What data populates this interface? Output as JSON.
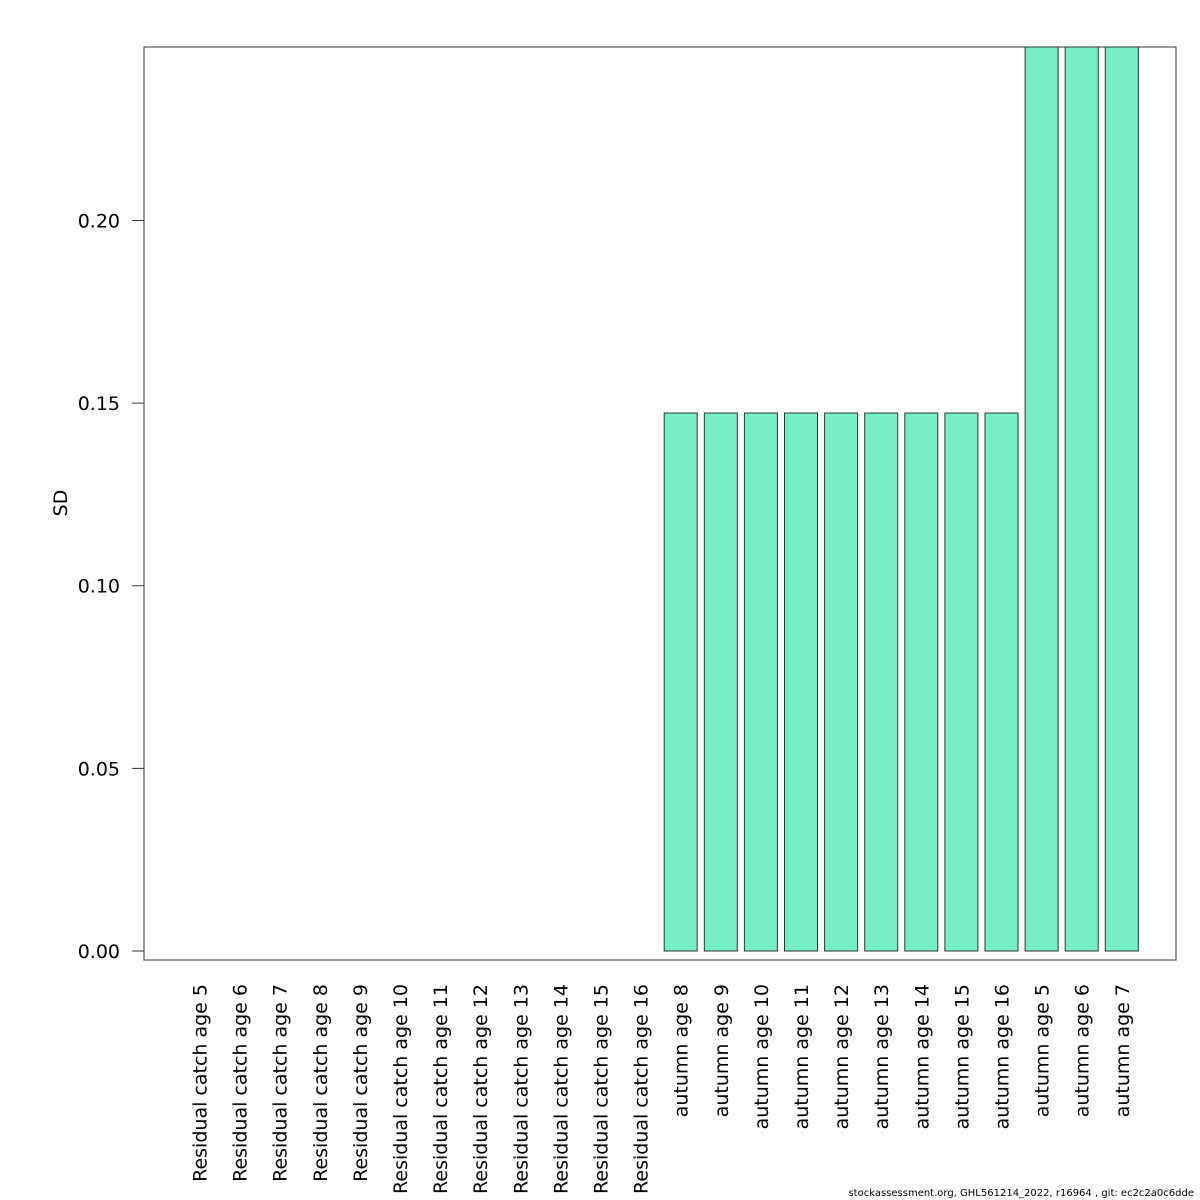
{
  "chart_data": {
    "type": "bar",
    "title": "",
    "xlabel": "",
    "ylabel": "SD",
    "ylim": [
      0,
      0.2475
    ],
    "yticks": [
      "0.00",
      "0.05",
      "0.10",
      "0.15",
      "0.20"
    ],
    "ytick_values": [
      0,
      0.05,
      0.1,
      0.15,
      0.2
    ],
    "grid": false,
    "legend": "none",
    "bar_color": "#76eec6",
    "bar_edge_color": "#333333",
    "categories": [
      "Residual catch age 5",
      "Residual catch age 6",
      "Residual catch age 7",
      "Residual catch age 8",
      "Residual catch age 9",
      "Residual catch age 10",
      "Residual catch age 11",
      "Residual catch age 12",
      "Residual catch age 13",
      "Residual catch age 14",
      "Residual catch age 15",
      "Residual catch age 16",
      "autumn age 8",
      "autumn age 9",
      "autumn age 10",
      "autumn age 11",
      "autumn age 12",
      "autumn age 13",
      "autumn age 14",
      "autumn age 15",
      "autumn age 16",
      "autumn age 5",
      "autumn age 6",
      "autumn age 7"
    ],
    "values": [
      0,
      0,
      0,
      0,
      0,
      0,
      0,
      0,
      0,
      0,
      0,
      0,
      0.1473,
      0.1473,
      0.1473,
      0.1473,
      0.1473,
      0.1473,
      0.1473,
      0.1473,
      0.1473,
      0.2475,
      0.2475,
      0.2475
    ]
  },
  "footer": {
    "note": "stockassessment.org, GHL561214_2022, r16964 , git: ec2c2a0c6dde"
  }
}
